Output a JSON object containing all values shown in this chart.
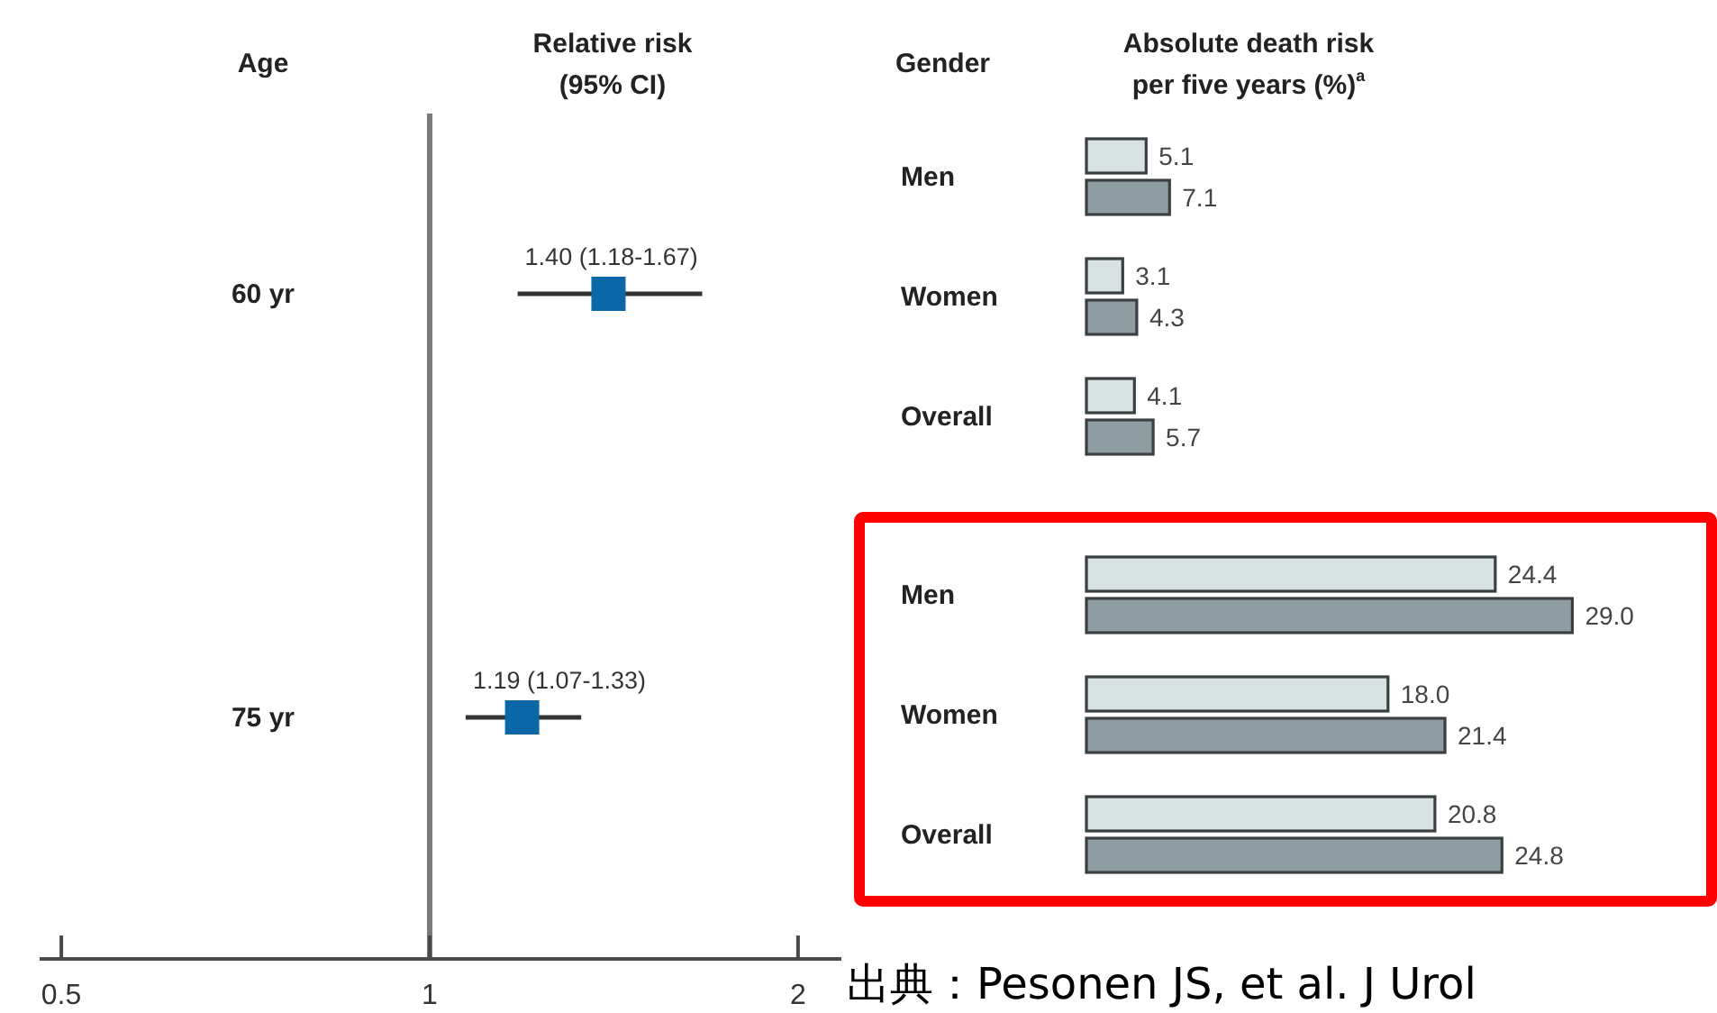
{
  "chart_data": [
    {
      "type": "scatter",
      "orientation": "horizontal",
      "title": "Relative risk (95% CI)",
      "ylabel": "Age",
      "categories": [
        "60 yr",
        "75 yr"
      ],
      "series": [
        {
          "color": "#0b67a6",
          "values": [
            1.4,
            1.19
          ],
          "errors": [
            [
              1.18,
              1.67
            ],
            [
              1.07,
              1.33
            ]
          ],
          "value_labels": [
            "1.40 (1.18-1.67)",
            "1.19 (1.07-1.33)"
          ]
        }
      ],
      "log": "x",
      "xlim": [
        0.48,
        2.17
      ],
      "xticks": [
        0.5,
        1,
        2
      ],
      "marker": "square",
      "ref_lines": [
        {
          "axis": "x",
          "value": 1,
          "color": "#7a7a7a"
        }
      ]
    },
    {
      "type": "bar",
      "orientation": "horizontal",
      "title": "Absolute death risk per five years (%)$^{a}$",
      "ylabel": "Gender",
      "categories": [
        "Men",
        "Women",
        "Overall"
      ],
      "series": [
        {
          "color": "#d8e2e2",
          "values": [
            5.1,
            3.1,
            4.1
          ]
        },
        {
          "color": "#8e9da2",
          "values": [
            7.1,
            4.3,
            5.7
          ]
        }
      ],
      "data_labels": true
    },
    {
      "type": "bar",
      "orientation": "horizontal",
      "categories": [
        "Men",
        "Women",
        "Overall"
      ],
      "series": [
        {
          "color": "#d8e2e2",
          "values": [
            24.4,
            18.0,
            20.8
          ],
          "value_labels": [
            "24.4",
            "18.0",
            "20.8"
          ]
        },
        {
          "color": "#8e9da2",
          "values": [
            29.0,
            21.4,
            24.8
          ],
          "value_labels": [
            "29.0",
            "21.4",
            "24.8"
          ]
        }
      ],
      "annotations": [
        "出典：Pesonen JS, et al. J Urol"
      ]
    }
  ]
}
